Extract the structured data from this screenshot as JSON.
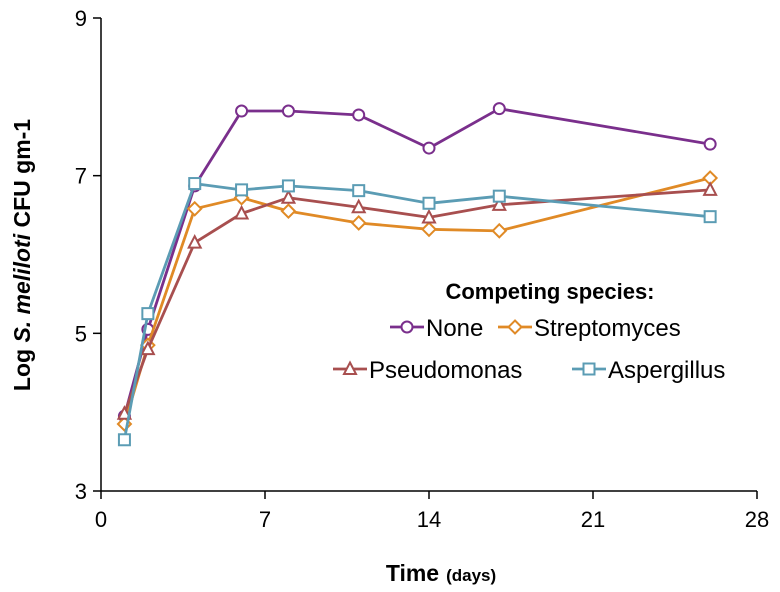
{
  "chart_data": {
    "type": "line",
    "ylabel_parts": [
      "Log ",
      "S. meliloti",
      " CFU gm-1"
    ],
    "xlabel_main": "Time",
    "xlabel_unit": "(days)",
    "xlim": [
      0,
      28
    ],
    "ylim": [
      3,
      9
    ],
    "x_ticks": [
      0,
      7,
      14,
      21,
      28
    ],
    "y_ticks": [
      3,
      5,
      7,
      9
    ],
    "grid": false,
    "legend": {
      "title": "Competing species:",
      "placement": "center-right"
    },
    "series": [
      {
        "name": "None",
        "color": "#7a2f8c",
        "marker": "circle",
        "x": [
          1,
          2,
          4,
          6,
          8,
          11,
          14,
          17,
          26
        ],
        "y": [
          3.95,
          5.05,
          6.87,
          7.82,
          7.82,
          7.77,
          7.35,
          7.85,
          7.4
        ]
      },
      {
        "name": "Streptomyces",
        "color": "#e08a26",
        "marker": "diamond",
        "x": [
          1,
          2,
          4,
          6,
          8,
          11,
          14,
          17,
          26
        ],
        "y": [
          3.85,
          4.85,
          6.58,
          6.72,
          6.55,
          6.4,
          6.32,
          6.3,
          6.97
        ]
      },
      {
        "name": "Pseudomonas",
        "color": "#a84f4f",
        "marker": "triangle",
        "x": [
          1,
          2,
          4,
          6,
          8,
          11,
          14,
          17,
          26
        ],
        "y": [
          3.98,
          4.8,
          6.15,
          6.52,
          6.72,
          6.6,
          6.47,
          6.63,
          6.82
        ]
      },
      {
        "name": "Aspergillus",
        "color": "#5b9cb4",
        "marker": "square",
        "x": [
          1,
          2,
          4,
          6,
          8,
          11,
          14,
          17,
          26
        ],
        "y": [
          3.65,
          5.25,
          6.9,
          6.82,
          6.87,
          6.81,
          6.65,
          6.74,
          6.48
        ]
      }
    ]
  }
}
